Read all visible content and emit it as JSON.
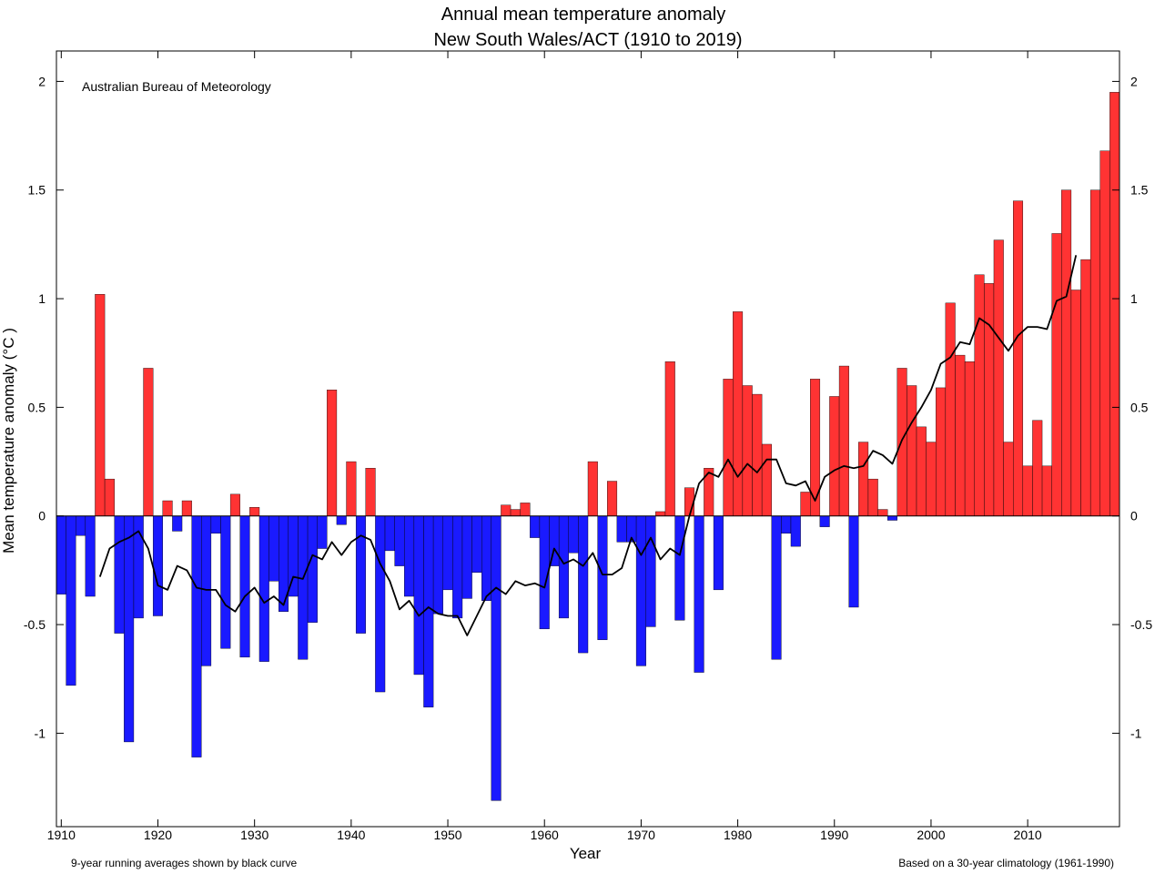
{
  "chart_data": {
    "type": "bar",
    "title": "Annual mean temperature anomaly",
    "subtitle": "New South Wales/ACT (1910 to 2019)",
    "xlabel": "Year",
    "ylabel": "Mean temperature anomaly (°C )",
    "source_label": "Australian Bureau of Meteorology",
    "footnote_left": "9-year running averages shown by black curve",
    "footnote_right": "Based on a 30-year climatology (1961-1990)",
    "xlim": [
      1909.5,
      2019.5
    ],
    "ylim": [
      -1.43,
      2.14
    ],
    "x_ticks": [
      1910,
      1920,
      1930,
      1940,
      1950,
      1960,
      1970,
      1980,
      1990,
      2000,
      2010
    ],
    "y_ticks": [
      -1,
      -0.5,
      0,
      0.5,
      1,
      1.5,
      2
    ],
    "y_tick_labels": [
      "-1",
      "-0.5",
      "0",
      "0.5",
      "1",
      "1.5",
      "2"
    ],
    "positive_color": "#ff3333",
    "negative_color": "#1a1aff",
    "grid": false,
    "years": [
      1910,
      1911,
      1912,
      1913,
      1914,
      1915,
      1916,
      1917,
      1918,
      1919,
      1920,
      1921,
      1922,
      1923,
      1924,
      1925,
      1926,
      1927,
      1928,
      1929,
      1930,
      1931,
      1932,
      1933,
      1934,
      1935,
      1936,
      1937,
      1938,
      1939,
      1940,
      1941,
      1942,
      1943,
      1944,
      1945,
      1946,
      1947,
      1948,
      1949,
      1950,
      1951,
      1952,
      1953,
      1954,
      1955,
      1956,
      1957,
      1958,
      1959,
      1960,
      1961,
      1962,
      1963,
      1964,
      1965,
      1966,
      1967,
      1968,
      1969,
      1970,
      1971,
      1972,
      1973,
      1974,
      1975,
      1976,
      1977,
      1978,
      1979,
      1980,
      1981,
      1982,
      1983,
      1984,
      1985,
      1986,
      1987,
      1988,
      1989,
      1990,
      1991,
      1992,
      1993,
      1994,
      1995,
      1996,
      1997,
      1998,
      1999,
      2000,
      2001,
      2002,
      2003,
      2004,
      2005,
      2006,
      2007,
      2008,
      2009,
      2010,
      2011,
      2012,
      2013,
      2014,
      2015,
      2016,
      2017,
      2018,
      2019
    ],
    "values": [
      -0.36,
      -0.78,
      -0.09,
      -0.37,
      1.02,
      0.17,
      -0.54,
      -1.04,
      -0.47,
      0.68,
      -0.46,
      0.07,
      -0.07,
      0.07,
      -1.11,
      -0.69,
      -0.08,
      -0.61,
      0.1,
      -0.65,
      0.04,
      -0.67,
      -0.3,
      -0.44,
      -0.37,
      -0.66,
      -0.49,
      -0.15,
      0.58,
      -0.04,
      0.25,
      -0.54,
      0.22,
      -0.81,
      -0.16,
      -0.23,
      -0.37,
      -0.73,
      -0.88,
      -0.45,
      -0.34,
      -0.47,
      -0.38,
      -0.26,
      -0.39,
      -1.31,
      0.05,
      0.03,
      0.06,
      -0.1,
      -0.52,
      -0.23,
      -0.47,
      -0.17,
      -0.63,
      0.25,
      -0.57,
      0.16,
      -0.12,
      -0.12,
      -0.69,
      -0.51,
      0.02,
      0.71,
      -0.48,
      0.13,
      -0.72,
      0.22,
      -0.34,
      0.63,
      0.94,
      0.6,
      0.56,
      0.33,
      -0.66,
      -0.08,
      -0.14,
      0.11,
      0.63,
      -0.05,
      0.55,
      0.69,
      -0.42,
      0.34,
      0.17,
      0.03,
      -0.02,
      0.68,
      0.6,
      0.41,
      0.34,
      0.59,
      0.98,
      0.74,
      0.71,
      1.11,
      1.07,
      1.27,
      0.34,
      1.45,
      0.23,
      0.44,
      0.23,
      1.3,
      1.5,
      1.04,
      1.18,
      1.5,
      1.68,
      1.95
    ],
    "running_mean": {
      "name": "9-year running averages",
      "color": "#000000",
      "years": [
        1914,
        1915,
        1916,
        1917,
        1918,
        1919,
        1920,
        1921,
        1922,
        1923,
        1924,
        1925,
        1926,
        1927,
        1928,
        1929,
        1930,
        1931,
        1932,
        1933,
        1934,
        1935,
        1936,
        1937,
        1938,
        1939,
        1940,
        1941,
        1942,
        1943,
        1944,
        1945,
        1946,
        1947,
        1948,
        1949,
        1950,
        1951,
        1952,
        1953,
        1954,
        1955,
        1956,
        1957,
        1958,
        1959,
        1960,
        1961,
        1962,
        1963,
        1964,
        1965,
        1966,
        1967,
        1968,
        1969,
        1970,
        1971,
        1972,
        1973,
        1974,
        1975,
        1976,
        1977,
        1978,
        1979,
        1980,
        1981,
        1982,
        1983,
        1984,
        1985,
        1986,
        1987,
        1988,
        1989,
        1990,
        1991,
        1992,
        1993,
        1994,
        1995,
        1996,
        1997,
        1998,
        1999,
        2000,
        2001,
        2002,
        2003,
        2004,
        2005,
        2006,
        2007,
        2008,
        2009,
        2010,
        2011,
        2012,
        2013,
        2014,
        2015
      ],
      "values": [
        -0.28,
        -0.15,
        -0.12,
        -0.1,
        -0.07,
        -0.15,
        -0.32,
        -0.34,
        -0.23,
        -0.25,
        -0.33,
        -0.34,
        -0.34,
        -0.41,
        -0.44,
        -0.37,
        -0.33,
        -0.4,
        -0.37,
        -0.41,
        -0.28,
        -0.29,
        -0.18,
        -0.2,
        -0.12,
        -0.18,
        -0.12,
        -0.09,
        -0.11,
        -0.22,
        -0.3,
        -0.43,
        -0.39,
        -0.46,
        -0.42,
        -0.45,
        -0.46,
        -0.46,
        -0.55,
        -0.46,
        -0.37,
        -0.33,
        -0.36,
        -0.3,
        -0.32,
        -0.31,
        -0.33,
        -0.15,
        -0.22,
        -0.2,
        -0.23,
        -0.17,
        -0.27,
        -0.27,
        -0.24,
        -0.1,
        -0.18,
        -0.1,
        -0.2,
        -0.15,
        -0.18,
        0.0,
        0.15,
        0.2,
        0.18,
        0.26,
        0.18,
        0.24,
        0.2,
        0.26,
        0.26,
        0.15,
        0.14,
        0.16,
        0.07,
        0.18,
        0.21,
        0.23,
        0.22,
        0.23,
        0.3,
        0.28,
        0.24,
        0.35,
        0.43,
        0.5,
        0.58,
        0.7,
        0.73,
        0.8,
        0.79,
        0.91,
        0.88,
        0.82,
        0.76,
        0.83,
        0.87,
        0.87,
        0.86,
        0.99,
        1.01,
        1.2
      ]
    }
  }
}
